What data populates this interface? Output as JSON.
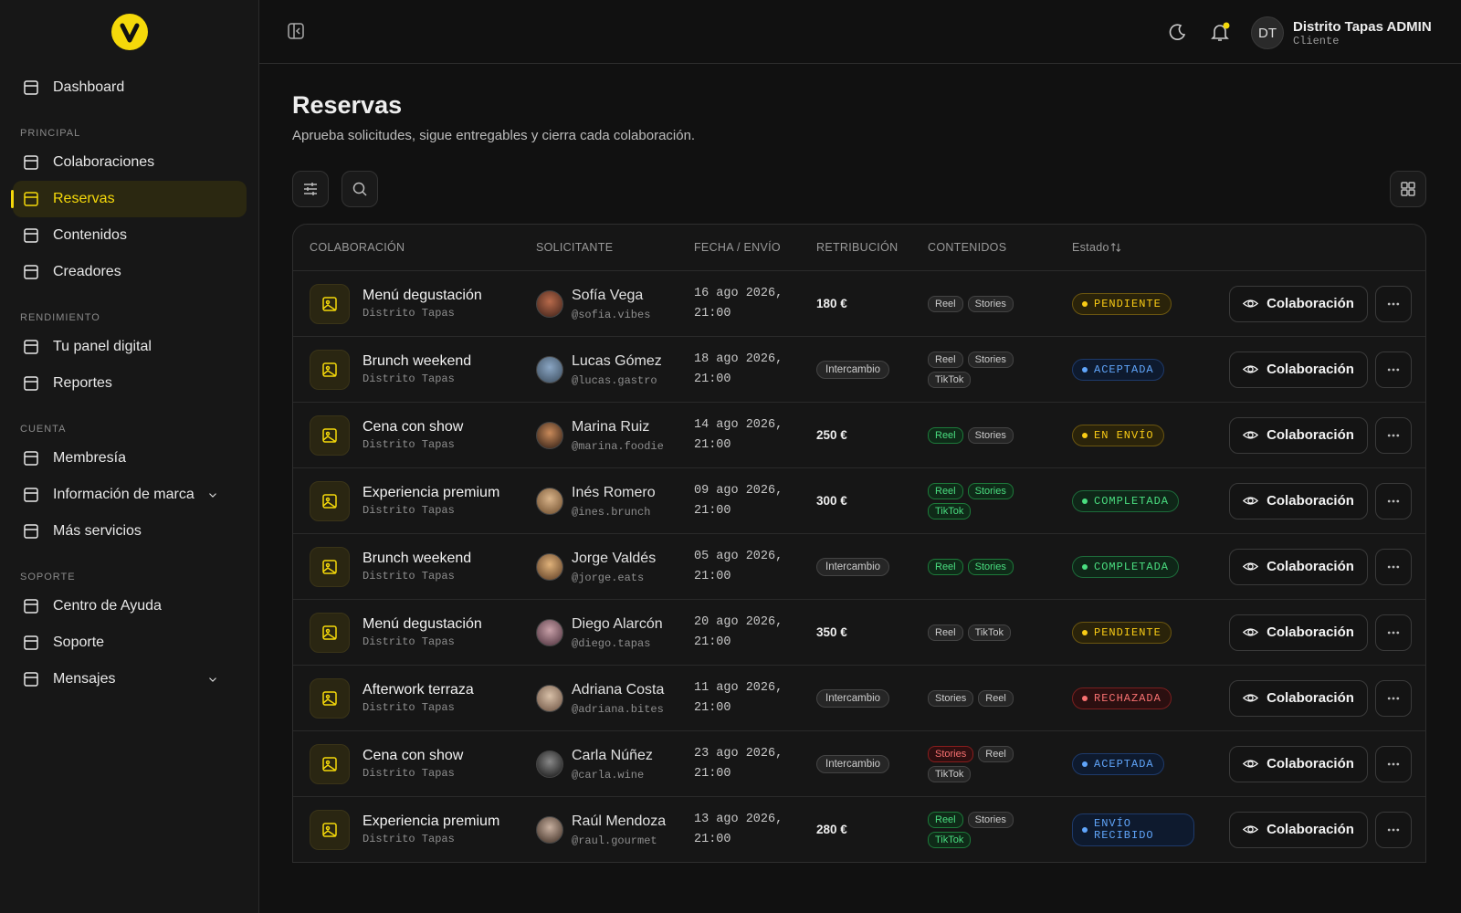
{
  "sidebar": {
    "top": {
      "label": "Dashboard"
    },
    "sections": [
      {
        "title": "PRINCIPAL",
        "items": [
          {
            "label": "Colaboraciones"
          },
          {
            "label": "Reservas",
            "active": true
          },
          {
            "label": "Contenidos"
          },
          {
            "label": "Creadores"
          }
        ]
      },
      {
        "title": "RENDIMIENTO",
        "items": [
          {
            "label": "Tu panel digital"
          },
          {
            "label": "Reportes"
          }
        ]
      },
      {
        "title": "CUENTA",
        "items": [
          {
            "label": "Membresía"
          },
          {
            "label": "Información de marca",
            "expandable": true
          },
          {
            "label": "Más servicios"
          }
        ]
      },
      {
        "title": "SOPORTE",
        "items": [
          {
            "label": "Centro de Ayuda"
          },
          {
            "label": "Soporte"
          },
          {
            "label": "Mensajes",
            "expandable": true
          }
        ]
      }
    ]
  },
  "header": {
    "initials": "DT",
    "user": "Distrito Tapas ADMIN",
    "role": "Cliente"
  },
  "page": {
    "title": "Reservas",
    "subtitle": "Aprueba solicitudes, sigue entregables y cierra cada colaboración."
  },
  "table": {
    "columns": [
      "COLABORACIÓN",
      "SOLICITANTE",
      "FECHA / ENVÍO",
      "RETRIBUCIÓN",
      "CONTENIDOS",
      "Estado"
    ],
    "action_label": "Colaboración",
    "rows": [
      {
        "title": "Menú degustación",
        "venue": "Distrito Tapas",
        "name": "Sofía Vega",
        "handle": "@sofia.vibes",
        "date": "16 ago 2026, 21:00",
        "reward": "180 €",
        "contents": [
          {
            "label": "Reel",
            "tone": "gray"
          },
          {
            "label": "Stories",
            "tone": "gray"
          }
        ],
        "status": "PENDIENTE",
        "status_tone": "yellow"
      },
      {
        "title": "Brunch weekend",
        "venue": "Distrito Tapas",
        "name": "Lucas Gómez",
        "handle": "@lucas.gastro",
        "date": "18 ago 2026, 21:00",
        "reward": "Intercambio",
        "reward_pill": true,
        "contents": [
          {
            "label": "Reel",
            "tone": "gray"
          },
          {
            "label": "Stories",
            "tone": "gray"
          },
          {
            "label": "TikTok",
            "tone": "gray"
          }
        ],
        "status": "ACEPTADA",
        "status_tone": "blue"
      },
      {
        "title": "Cena con show",
        "venue": "Distrito Tapas",
        "name": "Marina Ruiz",
        "handle": "@marina.foodie",
        "date": "14 ago 2026, 21:00",
        "reward": "250 €",
        "contents": [
          {
            "label": "Reel",
            "tone": "green"
          },
          {
            "label": "Stories",
            "tone": "gray"
          }
        ],
        "status": "EN ENVÍO",
        "status_tone": "yellow"
      },
      {
        "title": "Experiencia premium",
        "venue": "Distrito Tapas",
        "name": "Inés Romero",
        "handle": "@ines.brunch",
        "date": "09 ago 2026, 21:00",
        "reward": "300 €",
        "contents": [
          {
            "label": "Reel",
            "tone": "green"
          },
          {
            "label": "Stories",
            "tone": "green"
          },
          {
            "label": "TikTok",
            "tone": "green"
          }
        ],
        "status": "COMPLETADA",
        "status_tone": "green"
      },
      {
        "title": "Brunch weekend",
        "venue": "Distrito Tapas",
        "name": "Jorge Valdés",
        "handle": "@jorge.eats",
        "date": "05 ago 2026, 21:00",
        "reward": "Intercambio",
        "reward_pill": true,
        "contents": [
          {
            "label": "Reel",
            "tone": "green"
          },
          {
            "label": "Stories",
            "tone": "green"
          }
        ],
        "status": "COMPLETADA",
        "status_tone": "green"
      },
      {
        "title": "Menú degustación",
        "venue": "Distrito Tapas",
        "name": "Diego Alarcón",
        "handle": "@diego.tapas",
        "date": "20 ago 2026, 21:00",
        "reward": "350 €",
        "contents": [
          {
            "label": "Reel",
            "tone": "gray"
          },
          {
            "label": "TikTok",
            "tone": "gray"
          }
        ],
        "status": "PENDIENTE",
        "status_tone": "yellow"
      },
      {
        "title": "Afterwork terraza",
        "venue": "Distrito Tapas",
        "name": "Adriana Costa",
        "handle": "@adriana.bites",
        "date": "11 ago 2026, 21:00",
        "reward": "Intercambio",
        "reward_pill": true,
        "contents": [
          {
            "label": "Stories",
            "tone": "gray"
          },
          {
            "label": "Reel",
            "tone": "gray"
          }
        ],
        "status": "RECHAZADA",
        "status_tone": "red"
      },
      {
        "title": "Cena con show",
        "venue": "Distrito Tapas",
        "name": "Carla Núñez",
        "handle": "@carla.wine",
        "date": "23 ago 2026, 21:00",
        "reward": "Intercambio",
        "reward_pill": true,
        "contents": [
          {
            "label": "Stories",
            "tone": "red"
          },
          {
            "label": "Reel",
            "tone": "gray"
          },
          {
            "label": "TikTok",
            "tone": "gray"
          }
        ],
        "status": "ACEPTADA",
        "status_tone": "blue"
      },
      {
        "title": "Experiencia premium",
        "venue": "Distrito Tapas",
        "name": "Raúl Mendoza",
        "handle": "@raul.gourmet",
        "date": "13 ago 2026, 21:00",
        "reward": "280 €",
        "contents": [
          {
            "label": "Reel",
            "tone": "green"
          },
          {
            "label": "Stories",
            "tone": "gray"
          },
          {
            "label": "TikTok",
            "tone": "green"
          }
        ],
        "status": "ENVÍO RECIBIDO",
        "status_tone": "blue"
      }
    ]
  }
}
